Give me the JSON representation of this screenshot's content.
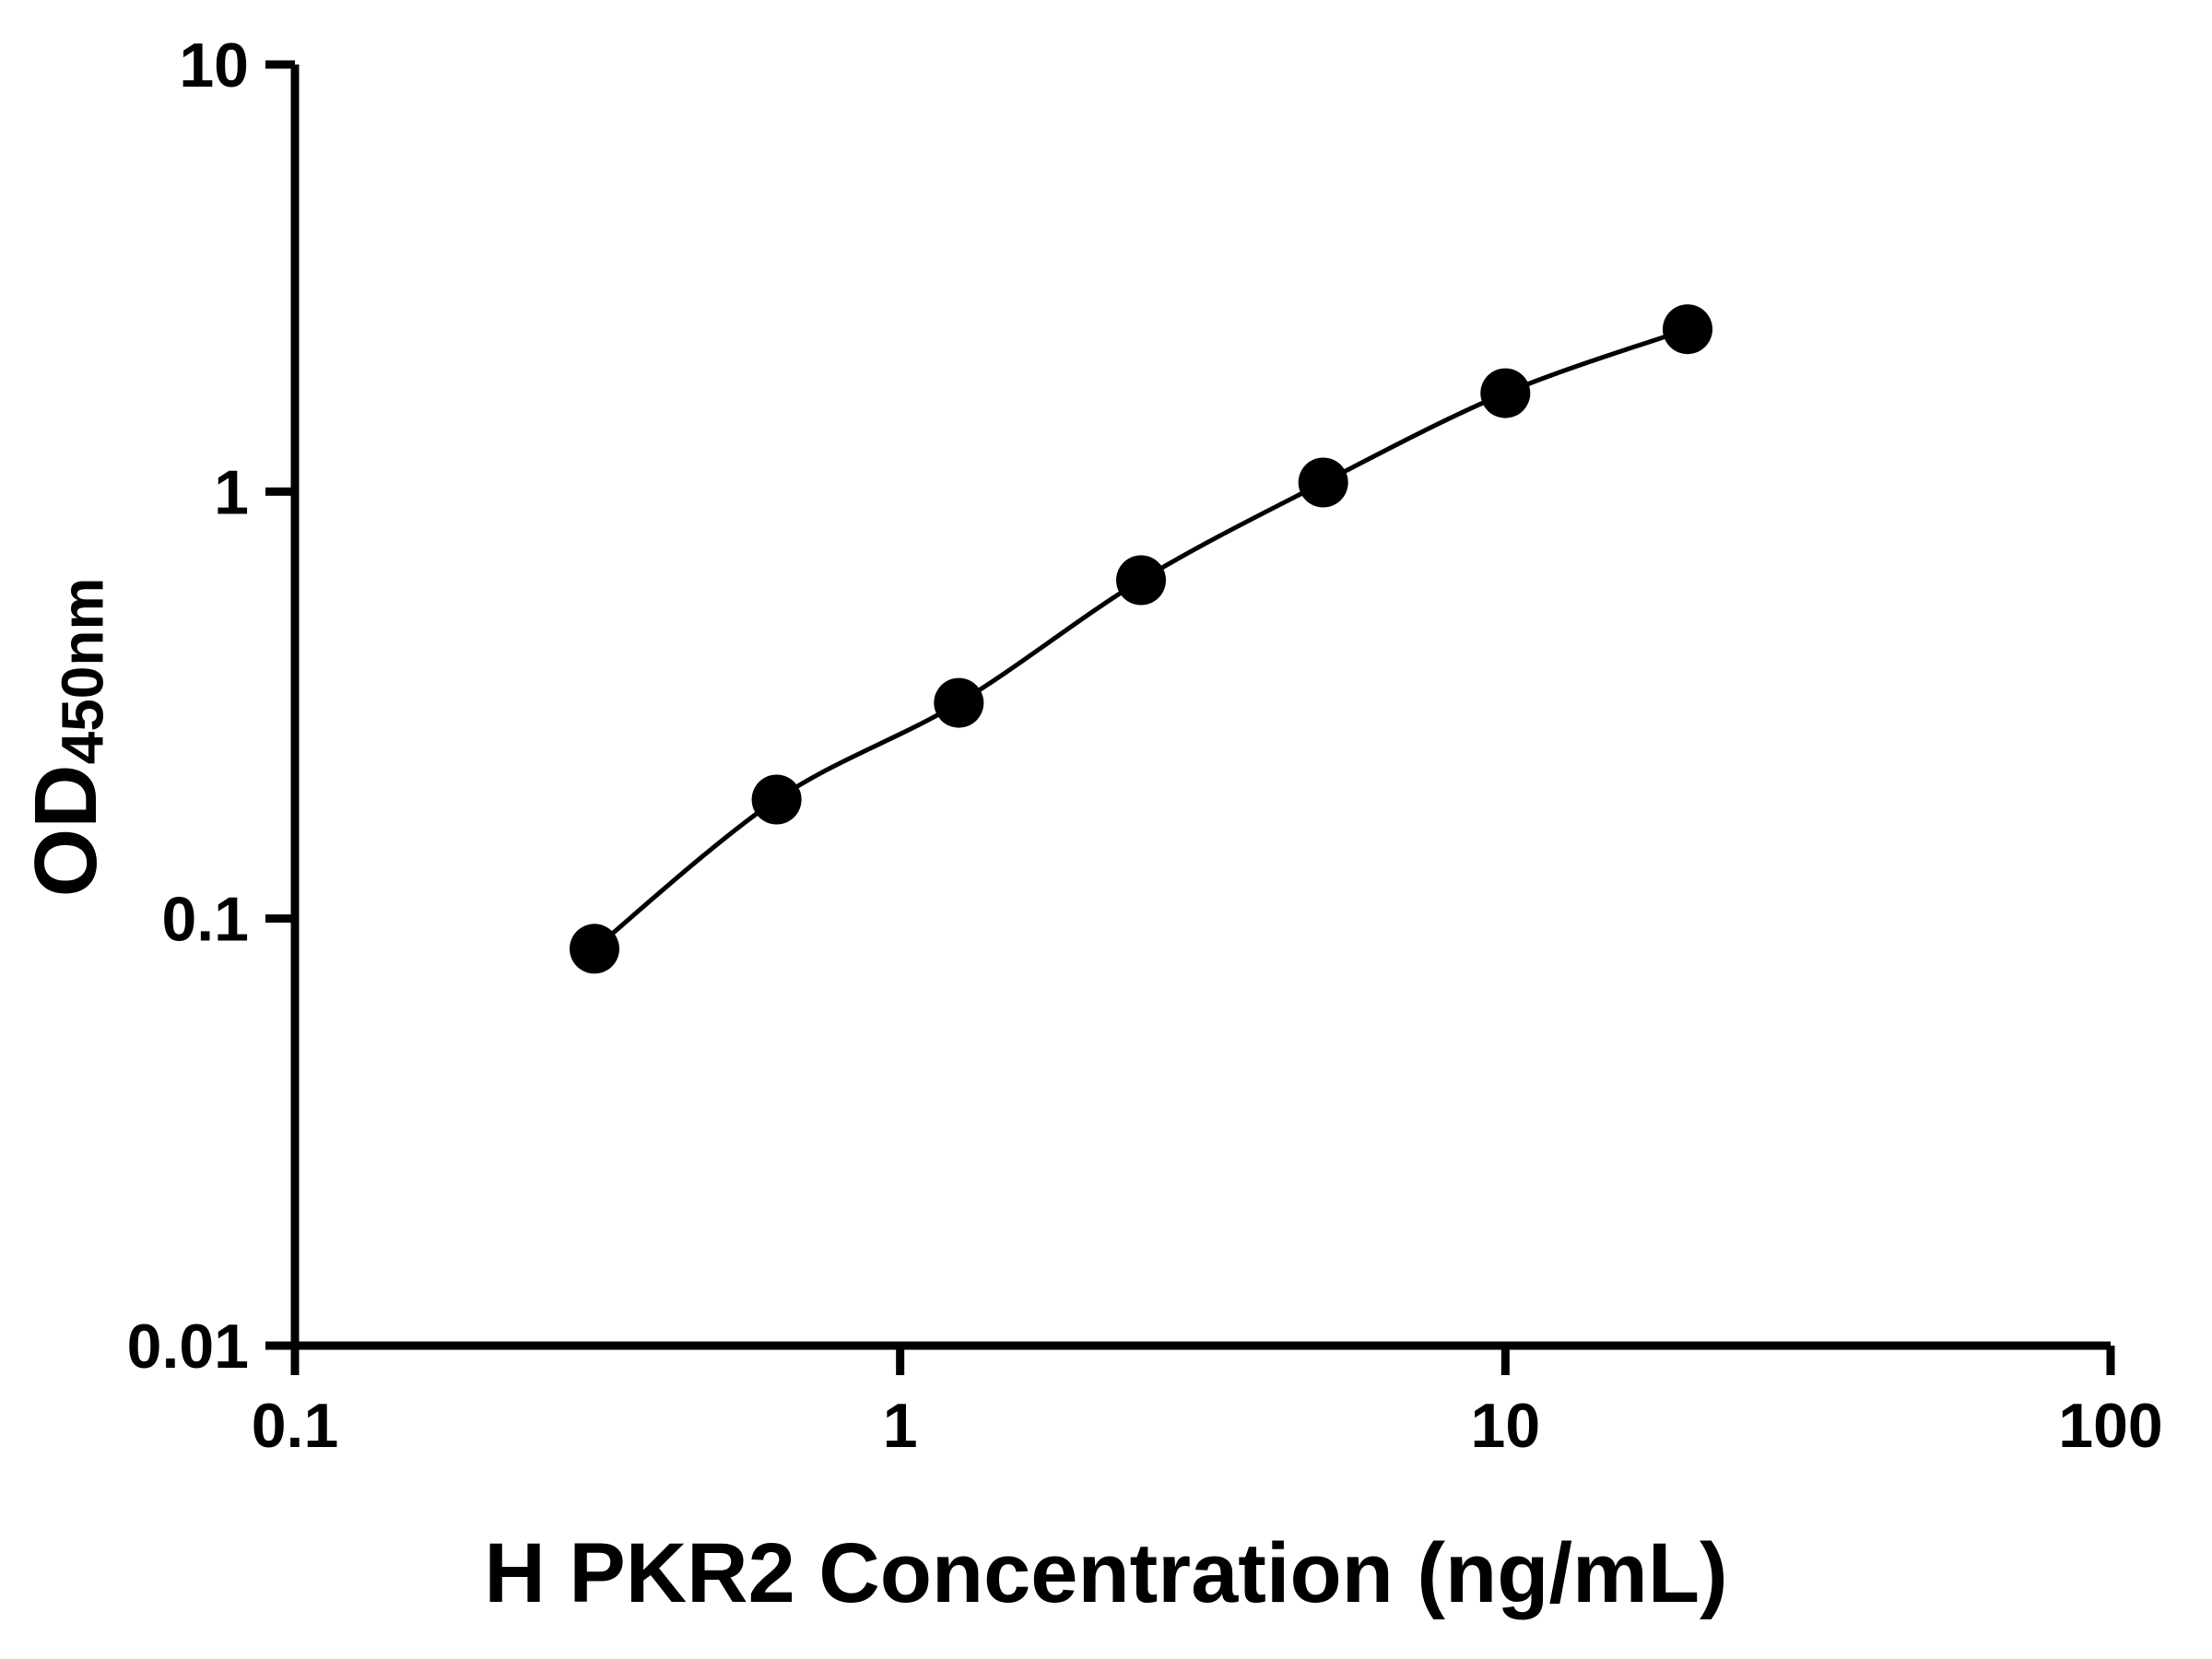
{
  "chart_data": {
    "type": "line",
    "title": "",
    "xlabel": "H PKR2 Concentration (ng/mL)",
    "ylabel_main": "OD",
    "ylabel_sub": "450nm",
    "xscale": "log",
    "yscale": "log",
    "xlim": [
      0.1,
      100
    ],
    "ylim": [
      0.01,
      10
    ],
    "x": [
      0.3125,
      0.625,
      1.25,
      2.5,
      5,
      10,
      20
    ],
    "y": [
      0.085,
      0.19,
      0.32,
      0.62,
      1.05,
      1.7,
      2.4
    ],
    "xticks": [
      {
        "v": 0.1,
        "label": "0.1"
      },
      {
        "v": 1,
        "label": "1"
      },
      {
        "v": 10,
        "label": "10"
      },
      {
        "v": 100,
        "label": "100"
      }
    ],
    "yticks": [
      {
        "v": 0.01,
        "label": "0.01"
      },
      {
        "v": 0.1,
        "label": "0.1"
      },
      {
        "v": 1,
        "label": "1"
      },
      {
        "v": 10,
        "label": "10"
      }
    ],
    "grid": false,
    "legend": "none",
    "line_color": "#000000",
    "marker_color": "#000000",
    "axis_color": "#000000",
    "background_color": "#ffffff"
  }
}
